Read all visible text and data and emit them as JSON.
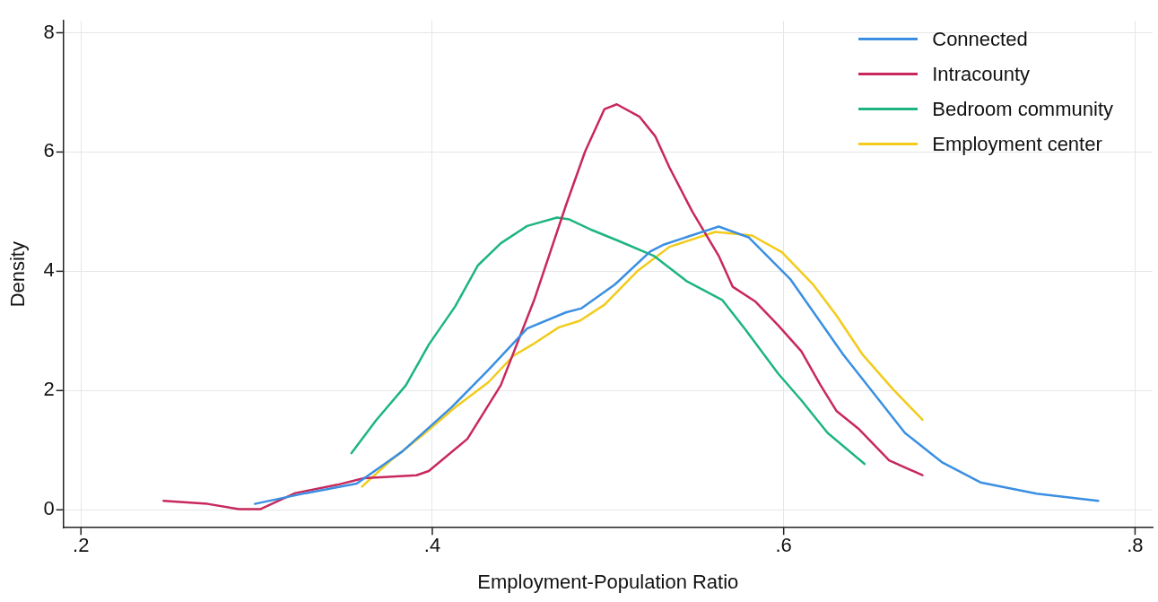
{
  "chart_data": {
    "type": "line",
    "xlabel": "Employment-Population Ratio",
    "ylabel": "Density",
    "xlim": [
      0.19,
      0.81
    ],
    "ylim": [
      -0.3,
      8.2
    ],
    "xticks": [
      {
        "value": 0.2,
        "label": ".2"
      },
      {
        "value": 0.4,
        "label": ".4"
      },
      {
        "value": 0.6,
        "label": ".6"
      },
      {
        "value": 0.8,
        "label": ".8"
      }
    ],
    "yticks": [
      0,
      2,
      4,
      6,
      8
    ],
    "grid": true,
    "legend": "top right",
    "marker": "none",
    "line_style": "solid",
    "series": [
      {
        "name": "Connected",
        "color": "#3a8fe2",
        "x": [
          0.299,
          0.328,
          0.357,
          0.383,
          0.411,
          0.432,
          0.454,
          0.476,
          0.485,
          0.504,
          0.524,
          0.532,
          0.563,
          0.58,
          0.604,
          0.634,
          0.669,
          0.69,
          0.712,
          0.744,
          0.779
        ],
        "values": [
          0.1,
          0.28,
          0.44,
          0.98,
          1.72,
          2.35,
          3.04,
          3.31,
          3.38,
          3.78,
          4.33,
          4.45,
          4.75,
          4.57,
          3.86,
          2.6,
          1.29,
          0.8,
          0.46,
          0.27,
          0.15
        ]
      },
      {
        "name": "Intracounty",
        "color": "#c8285c",
        "x": [
          0.247,
          0.272,
          0.29,
          0.302,
          0.322,
          0.346,
          0.361,
          0.391,
          0.398,
          0.42,
          0.439,
          0.458,
          0.476,
          0.487,
          0.498,
          0.505,
          0.518,
          0.527,
          0.535,
          0.548,
          0.563,
          0.571,
          0.584,
          0.597,
          0.61,
          0.621,
          0.63,
          0.643,
          0.66,
          0.679
        ],
        "values": [
          0.15,
          0.1,
          0.01,
          0.01,
          0.28,
          0.42,
          0.53,
          0.58,
          0.65,
          1.19,
          2.09,
          3.52,
          5.1,
          6.01,
          6.72,
          6.8,
          6.59,
          6.26,
          5.74,
          5.0,
          4.26,
          3.74,
          3.49,
          3.09,
          2.66,
          2.09,
          1.66,
          1.35,
          0.83,
          0.58
        ]
      },
      {
        "name": "Bedroom community",
        "color": "#1db57f",
        "x": [
          0.354,
          0.368,
          0.385,
          0.398,
          0.413,
          0.426,
          0.439,
          0.454,
          0.471,
          0.478,
          0.491,
          0.506,
          0.526,
          0.545,
          0.565,
          0.578,
          0.597,
          0.61,
          0.625,
          0.646
        ],
        "values": [
          0.95,
          1.5,
          2.09,
          2.77,
          3.41,
          4.1,
          4.47,
          4.76,
          4.9,
          4.87,
          4.69,
          4.51,
          4.26,
          3.83,
          3.52,
          3.03,
          2.28,
          1.84,
          1.29,
          0.77
        ]
      },
      {
        "name": "Employment center",
        "color": "#f2cb1b",
        "x": [
          0.36,
          0.376,
          0.394,
          0.413,
          0.432,
          0.446,
          0.458,
          0.472,
          0.484,
          0.498,
          0.517,
          0.535,
          0.561,
          0.582,
          0.599,
          0.617,
          0.63,
          0.645,
          0.662,
          0.679
        ],
        "values": [
          0.39,
          0.82,
          1.24,
          1.72,
          2.14,
          2.58,
          2.79,
          3.06,
          3.17,
          3.44,
          4.01,
          4.41,
          4.66,
          4.6,
          4.32,
          3.77,
          3.26,
          2.6,
          2.03,
          1.51
        ]
      }
    ]
  }
}
